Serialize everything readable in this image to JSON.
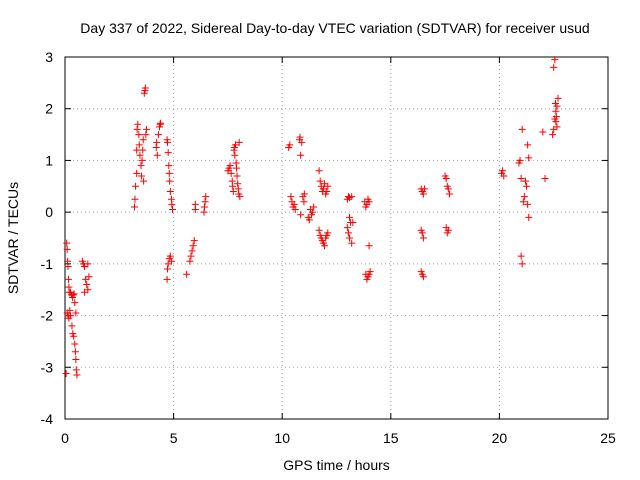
{
  "chart_data": {
    "type": "scatter",
    "title": "Day 337 of 2022, Sidereal Day-to-day VTEC variation (SDTVAR) for receiver usud",
    "xlabel": "GPS time / hours",
    "ylabel": "SDTVAR / TECUs",
    "xlim": [
      0,
      25
    ],
    "ylim": [
      -4,
      3
    ],
    "xticks": [
      "0",
      "5",
      "10",
      "15",
      "20",
      "25"
    ],
    "xtick_values": [
      0,
      5,
      10,
      15,
      20,
      25
    ],
    "yticks": [
      "-4",
      "-3",
      "-2",
      "-1",
      "0",
      "1",
      "2",
      "3"
    ],
    "ytick_values": [
      -4,
      -3,
      -2,
      -1,
      0,
      1,
      2,
      3
    ],
    "grid": true,
    "marker": "plus",
    "color": "#ff0000",
    "series": [
      {
        "name": "SDTVAR",
        "points": [
          [
            0.05,
            -3.12
          ],
          [
            0.08,
            -0.6
          ],
          [
            0.1,
            -0.72
          ],
          [
            0.12,
            -0.95
          ],
          [
            0.14,
            -1.05
          ],
          [
            0.16,
            -1.3
          ],
          [
            0.18,
            -1.45
          ],
          [
            0.2,
            -1.55
          ],
          [
            0.1,
            -1.95
          ],
          [
            0.14,
            -2.0
          ],
          [
            0.18,
            -2.05
          ],
          [
            0.22,
            -1.9
          ],
          [
            0.25,
            -2.0
          ],
          [
            0.25,
            -1.55
          ],
          [
            0.3,
            -1.6
          ],
          [
            0.35,
            -1.65
          ],
          [
            0.38,
            -1.6
          ],
          [
            0.42,
            -1.58
          ],
          [
            0.32,
            -2.2
          ],
          [
            0.36,
            -2.35
          ],
          [
            0.4,
            -2.4
          ],
          [
            0.45,
            -2.55
          ],
          [
            0.48,
            -2.7
          ],
          [
            0.5,
            -2.85
          ],
          [
            0.52,
            -3.05
          ],
          [
            0.55,
            -3.15
          ],
          [
            0.45,
            -1.75
          ],
          [
            0.5,
            -1.95
          ],
          [
            0.8,
            -0.95
          ],
          [
            0.85,
            -1.0
          ],
          [
            0.9,
            -1.05
          ],
          [
            0.95,
            -1.3
          ],
          [
            1.0,
            -1.4
          ],
          [
            1.05,
            -1.5
          ],
          [
            0.9,
            -1.55
          ],
          [
            1.1,
            -1.25
          ],
          [
            1.05,
            -1.0
          ],
          [
            3.2,
            0.1
          ],
          [
            3.22,
            0.25
          ],
          [
            3.25,
            0.5
          ],
          [
            3.3,
            0.75
          ],
          [
            3.3,
            1.2
          ],
          [
            3.32,
            1.6
          ],
          [
            3.35,
            1.7
          ],
          [
            3.4,
            1.5
          ],
          [
            3.42,
            1.3
          ],
          [
            3.45,
            1.1
          ],
          [
            3.5,
            0.9
          ],
          [
            3.52,
            0.7
          ],
          [
            3.55,
            1.0
          ],
          [
            3.58,
            1.2
          ],
          [
            3.6,
            1.4
          ],
          [
            3.62,
            0.6
          ],
          [
            3.65,
            2.3
          ],
          [
            3.68,
            2.35
          ],
          [
            3.7,
            2.4
          ],
          [
            3.72,
            1.5
          ],
          [
            3.75,
            1.6
          ],
          [
            4.2,
            1.25
          ],
          [
            4.22,
            1.35
          ],
          [
            4.25,
            1.1
          ],
          [
            4.3,
            1.5
          ],
          [
            4.35,
            1.65
          ],
          [
            4.38,
            1.7
          ],
          [
            4.4,
            1.72
          ],
          [
            4.7,
            1.4
          ],
          [
            4.72,
            1.35
          ],
          [
            4.75,
            1.15
          ],
          [
            4.78,
            0.9
          ],
          [
            4.8,
            0.75
          ],
          [
            4.82,
            0.6
          ],
          [
            4.85,
            0.4
          ],
          [
            4.9,
            0.25
          ],
          [
            4.92,
            0.15
          ],
          [
            4.95,
            0.05
          ],
          [
            4.7,
            -1.3
          ],
          [
            4.72,
            -1.1
          ],
          [
            4.75,
            -1.0
          ],
          [
            4.8,
            -0.9
          ],
          [
            4.85,
            -0.85
          ],
          [
            4.9,
            -0.95
          ],
          [
            5.6,
            -1.2
          ],
          [
            5.75,
            -0.95
          ],
          [
            5.8,
            -0.85
          ],
          [
            5.85,
            -0.75
          ],
          [
            5.9,
            -0.65
          ],
          [
            5.95,
            -0.55
          ],
          [
            6.0,
            0.15
          ],
          [
            6.0,
            0.05
          ],
          [
            6.4,
            0.0
          ],
          [
            6.42,
            0.1
          ],
          [
            6.45,
            0.2
          ],
          [
            6.48,
            0.3
          ],
          [
            7.5,
            0.8
          ],
          [
            7.55,
            0.85
          ],
          [
            7.6,
            0.9
          ],
          [
            7.65,
            0.75
          ],
          [
            7.7,
            0.6
          ],
          [
            7.72,
            0.5
          ],
          [
            7.75,
            0.4
          ],
          [
            7.78,
            1.2
          ],
          [
            7.8,
            1.25
          ],
          [
            7.82,
            1.1
          ],
          [
            7.85,
            1.3
          ],
          [
            7.88,
            0.95
          ],
          [
            7.9,
            0.85
          ],
          [
            7.92,
            0.7
          ],
          [
            7.95,
            0.55
          ],
          [
            7.98,
            0.45
          ],
          [
            8.0,
            0.35
          ],
          [
            8.02,
            1.35
          ],
          [
            8.05,
            0.3
          ],
          [
            10.3,
            1.25
          ],
          [
            10.35,
            1.3
          ],
          [
            10.4,
            0.3
          ],
          [
            10.45,
            0.2
          ],
          [
            10.5,
            0.1
          ],
          [
            10.55,
            0.15
          ],
          [
            10.6,
            0.05
          ],
          [
            10.8,
            1.4
          ],
          [
            10.82,
            1.45
          ],
          [
            10.85,
            1.1
          ],
          [
            10.9,
            1.35
          ],
          [
            10.95,
            0.3
          ],
          [
            11.0,
            0.2
          ],
          [
            10.85,
            -0.05
          ],
          [
            11.02,
            0.35
          ],
          [
            11.2,
            -0.1
          ],
          [
            11.25,
            -0.15
          ],
          [
            11.3,
            0.05
          ],
          [
            11.35,
            -0.05
          ],
          [
            11.4,
            0.0
          ],
          [
            11.45,
            0.1
          ],
          [
            11.7,
            0.8
          ],
          [
            11.75,
            0.6
          ],
          [
            11.8,
            0.5
          ],
          [
            11.85,
            0.4
          ],
          [
            11.9,
            0.45
          ],
          [
            11.95,
            0.55
          ],
          [
            12.0,
            0.35
          ],
          [
            12.05,
            0.4
          ],
          [
            12.1,
            0.5
          ],
          [
            11.7,
            -0.35
          ],
          [
            11.75,
            -0.45
          ],
          [
            11.8,
            -0.5
          ],
          [
            11.85,
            -0.55
          ],
          [
            11.9,
            -0.6
          ],
          [
            11.95,
            -0.65
          ],
          [
            12.0,
            -0.5
          ],
          [
            12.05,
            -0.45
          ],
          [
            12.1,
            -0.4
          ],
          [
            13.0,
            0.25
          ],
          [
            13.05,
            0.3
          ],
          [
            13.1,
            0.28
          ],
          [
            13.0,
            -0.3
          ],
          [
            13.05,
            -0.4
          ],
          [
            13.1,
            -0.5
          ],
          [
            13.15,
            -0.2
          ],
          [
            13.2,
            -0.6
          ],
          [
            13.25,
            -0.2
          ],
          [
            13.2,
            0.3
          ],
          [
            13.1,
            -0.1
          ],
          [
            13.8,
            0.2
          ],
          [
            13.85,
            0.1
          ],
          [
            13.9,
            0.15
          ],
          [
            13.95,
            0.25
          ],
          [
            14.0,
            0.2
          ],
          [
            13.85,
            -1.2
          ],
          [
            13.9,
            -1.3
          ],
          [
            13.95,
            -1.25
          ],
          [
            14.0,
            -1.2
          ],
          [
            14.05,
            -1.15
          ],
          [
            14.0,
            -0.65
          ],
          [
            16.4,
            0.45
          ],
          [
            16.45,
            0.4
          ],
          [
            16.5,
            0.35
          ],
          [
            16.55,
            0.45
          ],
          [
            16.4,
            -0.35
          ],
          [
            16.45,
            -0.4
          ],
          [
            16.5,
            -0.5
          ],
          [
            16.4,
            -1.15
          ],
          [
            16.45,
            -1.2
          ],
          [
            16.5,
            -1.25
          ],
          [
            17.5,
            0.7
          ],
          [
            17.55,
            0.65
          ],
          [
            17.6,
            0.5
          ],
          [
            17.65,
            0.45
          ],
          [
            17.7,
            0.35
          ],
          [
            17.55,
            -0.3
          ],
          [
            17.6,
            -0.4
          ],
          [
            17.65,
            -0.35
          ],
          [
            20.1,
            0.75
          ],
          [
            20.15,
            0.8
          ],
          [
            20.2,
            0.7
          ],
          [
            20.9,
            0.95
          ],
          [
            20.95,
            1.0
          ],
          [
            21.0,
            0.65
          ],
          [
            21.05,
            1.6
          ],
          [
            21.0,
            -0.85
          ],
          [
            21.05,
            -1.0
          ],
          [
            21.1,
            0.2
          ],
          [
            21.15,
            0.3
          ],
          [
            21.2,
            0.6
          ],
          [
            21.25,
            0.5
          ],
          [
            21.3,
            1.3
          ],
          [
            21.35,
            1.05
          ],
          [
            21.3,
            0.15
          ],
          [
            21.35,
            -0.1
          ],
          [
            22.0,
            1.55
          ],
          [
            22.1,
            0.65
          ],
          [
            22.45,
            1.5
          ],
          [
            22.5,
            1.6
          ],
          [
            22.55,
            1.8
          ],
          [
            22.6,
            1.95
          ],
          [
            22.65,
            2.05
          ],
          [
            22.7,
            2.2
          ],
          [
            22.5,
            2.8
          ],
          [
            22.55,
            2.95
          ],
          [
            22.6,
            1.75
          ],
          [
            22.62,
            1.85
          ],
          [
            22.58,
            2.1
          ],
          [
            22.65,
            1.65
          ]
        ]
      }
    ]
  }
}
